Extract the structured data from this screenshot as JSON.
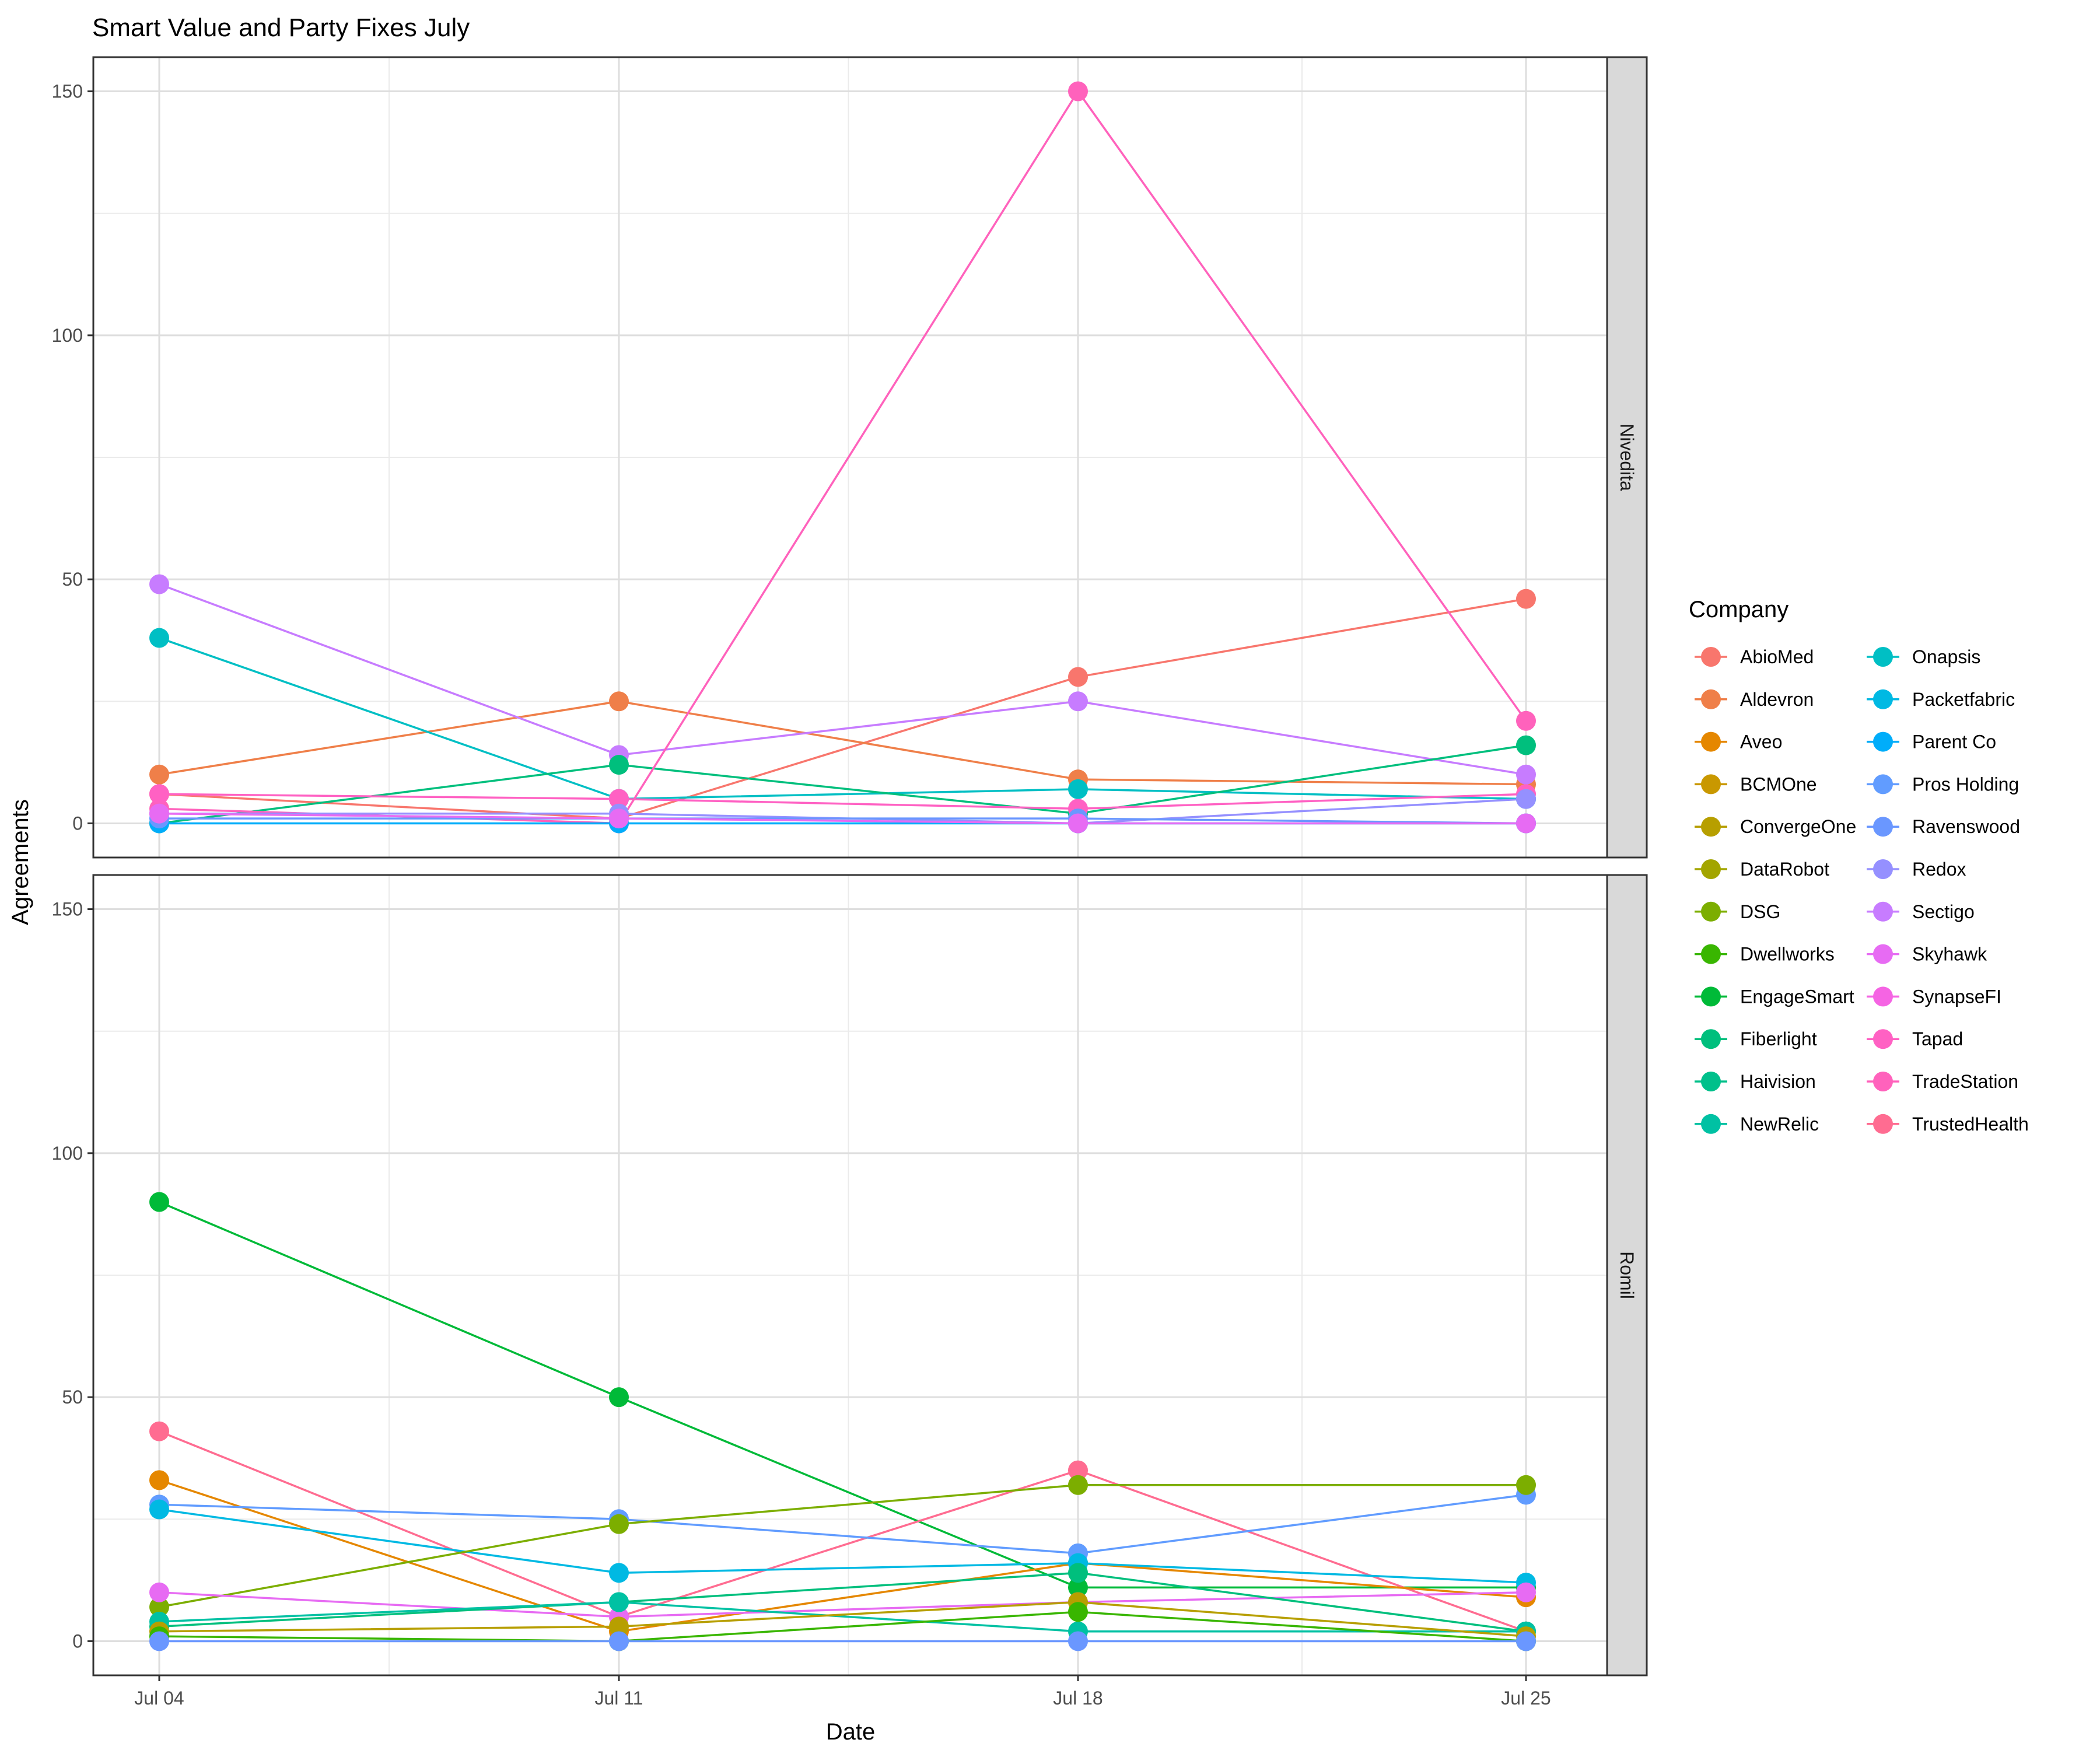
{
  "chart_data": {
    "type": "line",
    "title": "Smart Value and Party Fixes July",
    "xlabel": "Date",
    "ylabel": "Agreements",
    "x": [
      "Jul 04",
      "Jul 11",
      "Jul 18",
      "Jul 25"
    ],
    "ylim": [
      -7,
      157
    ],
    "yticks": [
      0,
      50,
      100,
      150
    ],
    "grid": true,
    "legend": {
      "title": "Company",
      "placement": "right",
      "columns": 2
    },
    "facets": [
      "Nivedita",
      "Romil"
    ],
    "series": [
      {
        "name": "AbioMed",
        "color": "#F8766D"
      },
      {
        "name": "Aldevron",
        "color": "#EF7F49"
      },
      {
        "name": "Aveo",
        "color": "#E58700"
      },
      {
        "name": "BCMOne",
        "color": "#C99800"
      },
      {
        "name": "ConvergeOne",
        "color": "#B79F00"
      },
      {
        "name": "DataRobot",
        "color": "#A3A500"
      },
      {
        "name": "DSG",
        "color": "#7CAE00"
      },
      {
        "name": "Dwellworks",
        "color": "#39B600"
      },
      {
        "name": "EngageSmart",
        "color": "#00BA38"
      },
      {
        "name": "Fiberlight",
        "color": "#00BF7D"
      },
      {
        "name": "Haivision",
        "color": "#00C08B"
      },
      {
        "name": "NewRelic",
        "color": "#00C1A3"
      },
      {
        "name": "Onapsis",
        "color": "#00BFC4"
      },
      {
        "name": "Packetfabric",
        "color": "#00B9E3"
      },
      {
        "name": "Parent Co",
        "color": "#00ADFA"
      },
      {
        "name": "Pros Holding",
        "color": "#619CFF"
      },
      {
        "name": "Ravenswood",
        "color": "#6A97FF"
      },
      {
        "name": "Redox",
        "color": "#9590FF"
      },
      {
        "name": "Sectigo",
        "color": "#C77CFF"
      },
      {
        "name": "Skyhawk",
        "color": "#E76BF3"
      },
      {
        "name": "SynapseFI",
        "color": "#F564E3"
      },
      {
        "name": "Tapad",
        "color": "#FF61C3"
      },
      {
        "name": "TradeStation",
        "color": "#FF62BC"
      },
      {
        "name": "TrustedHealth",
        "color": "#FF6C91"
      }
    ],
    "panels": [
      {
        "facet": "Nivedita",
        "lines": [
          {
            "company": "AbioMed",
            "values": [
              6,
              1,
              30,
              46
            ]
          },
          {
            "company": "Aldevron",
            "values": [
              10,
              25,
              9,
              8
            ]
          },
          {
            "company": "Sectigo",
            "values": [
              49,
              14,
              25,
              10
            ]
          },
          {
            "company": "Onapsis",
            "values": [
              38,
              5,
              7,
              5
            ]
          },
          {
            "company": "Fiberlight",
            "values": [
              0,
              12,
              2,
              16
            ]
          },
          {
            "company": "TradeStation",
            "values": [
              3,
              0,
              150,
              21
            ]
          },
          {
            "company": "Tapad",
            "values": [
              6,
              5,
              3,
              6
            ]
          },
          {
            "company": "Redox",
            "values": [
              2,
              2,
              0,
              5
            ]
          },
          {
            "company": "Parent Co",
            "values": [
              0,
              0,
              0,
              0
            ]
          },
          {
            "company": "Ravenswood",
            "values": [
              1,
              1,
              1,
              0
            ]
          },
          {
            "company": "Skyhawk",
            "values": [
              2,
              1,
              0,
              0
            ]
          }
        ]
      },
      {
        "facet": "Romil",
        "lines": [
          {
            "company": "EngageSmart",
            "values": [
              90,
              50,
              11,
              11
            ]
          },
          {
            "company": "TrustedHealth",
            "values": [
              43,
              5,
              35,
              2
            ]
          },
          {
            "company": "Aveo",
            "values": [
              33,
              2,
              16,
              9
            ]
          },
          {
            "company": "Pros Holding",
            "values": [
              28,
              25,
              18,
              30
            ]
          },
          {
            "company": "Packetfabric",
            "values": [
              27,
              14,
              16,
              12
            ]
          },
          {
            "company": "DSG",
            "values": [
              7,
              24,
              32,
              32
            ]
          },
          {
            "company": "Skyhawk",
            "values": [
              10,
              5,
              8,
              10
            ]
          },
          {
            "company": "Fiberlight",
            "values": [
              3,
              8,
              14,
              2
            ]
          },
          {
            "company": "NewRelic",
            "values": [
              4,
              8,
              2,
              2
            ]
          },
          {
            "company": "ConvergeOne",
            "values": [
              2,
              3,
              8,
              1
            ]
          },
          {
            "company": "Dwellworks",
            "values": [
              1,
              0,
              6,
              0
            ]
          },
          {
            "company": "Ravenswood",
            "values": [
              0,
              0,
              0,
              0
            ]
          }
        ]
      }
    ]
  }
}
